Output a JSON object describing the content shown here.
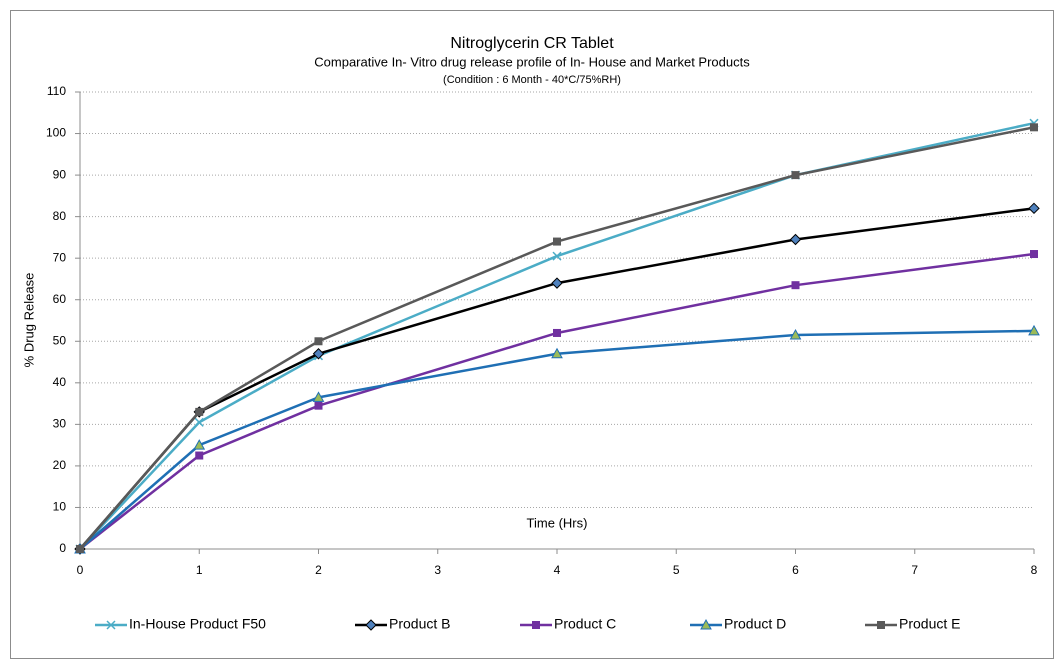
{
  "chart_data": {
    "type": "line",
    "title": "Nitroglycerin  CR Tablet",
    "subtitle": "Comparative In- Vitro  drug release profile of In- House and Market Products",
    "condition": "(Condition : 6 Month - 40*C/75%RH)",
    "xlabel": "Time (Hrs)",
    "ylabel": "% Drug Release",
    "x": [
      0,
      1,
      2,
      4,
      6,
      8
    ],
    "series": [
      {
        "name": "In-House Product F50",
        "color": "#4bacc6",
        "marker": "x",
        "values": [
          0,
          30.5,
          46.5,
          70.5,
          90,
          102.5
        ]
      },
      {
        "name": "Product B",
        "color": "#000000",
        "marker": "diamond",
        "values": [
          0,
          33,
          47,
          64,
          74.5,
          82
        ]
      },
      {
        "name": "Product C",
        "color": "#7030a0",
        "marker": "square",
        "values": [
          0,
          22.5,
          34.5,
          52,
          63.5,
          71
        ]
      },
      {
        "name": "Product D",
        "color": "#1f6fb4",
        "marker": "triangle",
        "values": [
          0,
          25,
          36.5,
          47,
          51.5,
          52.5
        ]
      },
      {
        "name": "Product E",
        "color": "#595959",
        "marker": "square",
        "values": [
          0,
          33,
          50,
          74,
          90,
          101.5
        ]
      }
    ],
    "xlim": [
      0,
      8
    ],
    "xticks": [
      0,
      1,
      2,
      3,
      4,
      5,
      6,
      7,
      8
    ],
    "ylim": [
      0,
      110
    ],
    "yticks": [
      0,
      10,
      20,
      30,
      40,
      50,
      60,
      70,
      80,
      90,
      100,
      110
    ],
    "grid": true,
    "legend": "bottom"
  }
}
